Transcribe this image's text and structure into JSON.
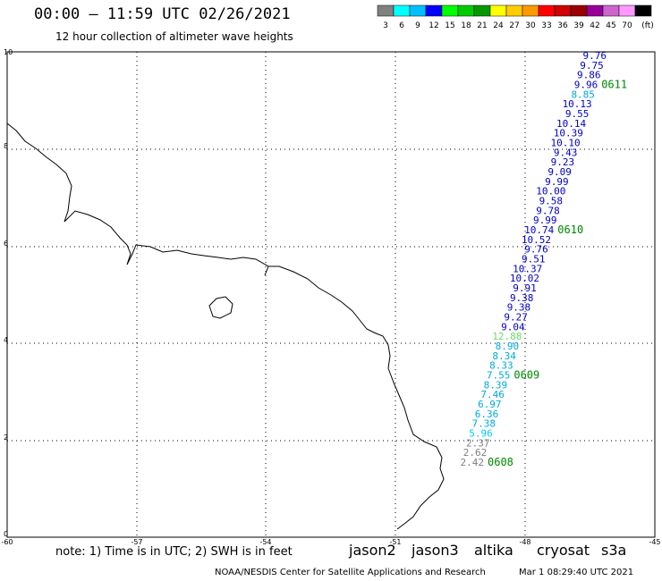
{
  "header": {
    "title": "00:00 – 11:59 UTC 02/26/2021",
    "subtitle": "12 hour collection of altimeter wave heights"
  },
  "legend": {
    "colors": [
      "#808080",
      "#00ffff",
      "#00bfff",
      "#0000ff",
      "#00ff00",
      "#00cc00",
      "#009900",
      "#ffff00",
      "#ffcc00",
      "#ff9900",
      "#ff0000",
      "#cc0000",
      "#990000",
      "#990099",
      "#cc66cc",
      "#ff99ff",
      "#000000"
    ],
    "labels": [
      "3",
      "6",
      "9",
      "12",
      "15",
      "18",
      "21",
      "24",
      "27",
      "30",
      "33",
      "36",
      "39",
      "42",
      "45",
      "70",
      "(ft)"
    ]
  },
  "axes": {
    "lat_labels": [
      "10",
      "8",
      "6",
      "4",
      "2",
      "0"
    ],
    "lon_labels": [
      "-60",
      "-57",
      "-54",
      "-51",
      "-48",
      "-45"
    ]
  },
  "track": {
    "readings": [
      {
        "v": "9.76",
        "c": "#0000cc"
      },
      {
        "v": "9.75",
        "c": "#0000cc"
      },
      {
        "v": "9.86",
        "c": "#0000cc"
      },
      {
        "v": "9.96",
        "c": "#0000cc"
      },
      {
        "v": "8.85",
        "c": "#00aadd"
      },
      {
        "v": "10.13",
        "c": "#0000cc"
      },
      {
        "v": "9.55",
        "c": "#0000cc"
      },
      {
        "v": "10.14",
        "c": "#0000cc"
      },
      {
        "v": "10.39",
        "c": "#0000cc"
      },
      {
        "v": "10.10",
        "c": "#0000cc"
      },
      {
        "v": "9.43",
        "c": "#0000cc"
      },
      {
        "v": "9.23",
        "c": "#0000cc"
      },
      {
        "v": "9.09",
        "c": "#0000cc"
      },
      {
        "v": "9.99",
        "c": "#0000cc"
      },
      {
        "v": "10.00",
        "c": "#0000cc"
      },
      {
        "v": "9.58",
        "c": "#0000cc"
      },
      {
        "v": "9.78",
        "c": "#0000cc"
      },
      {
        "v": "9.99",
        "c": "#0000cc"
      },
      {
        "v": "10.74",
        "c": "#0000cc"
      },
      {
        "v": "10.52",
        "c": "#0000cc"
      },
      {
        "v": "9.76",
        "c": "#0000cc"
      },
      {
        "v": "9.51",
        "c": "#0000cc"
      },
      {
        "v": "10.37",
        "c": "#0000cc"
      },
      {
        "v": "10.02",
        "c": "#0000cc"
      },
      {
        "v": "9.91",
        "c": "#0000cc"
      },
      {
        "v": "9.38",
        "c": "#0000cc"
      },
      {
        "v": "9.38",
        "c": "#0000cc"
      },
      {
        "v": "9.27",
        "c": "#0000cc"
      },
      {
        "v": "9.04",
        "c": "#0000cc"
      },
      {
        "v": "12.88",
        "c": "#66dd66"
      },
      {
        "v": "8.90",
        "c": "#00aadd"
      },
      {
        "v": "8.34",
        "c": "#00aadd"
      },
      {
        "v": "8.33",
        "c": "#00aadd"
      },
      {
        "v": "7.55",
        "c": "#00aadd"
      },
      {
        "v": "8.39",
        "c": "#00aadd"
      },
      {
        "v": "7.46",
        "c": "#00aadd"
      },
      {
        "v": "6.97",
        "c": "#00aadd"
      },
      {
        "v": "6.36",
        "c": "#00aadd"
      },
      {
        "v": "7.38",
        "c": "#00aadd"
      },
      {
        "v": "5.96",
        "c": "#00ccff"
      },
      {
        "v": "2.37",
        "c": "#808080"
      },
      {
        "v": "2.62",
        "c": "#808080"
      },
      {
        "v": "2.42",
        "c": "#808080"
      }
    ],
    "times": [
      "0611",
      "0610",
      "0609",
      "0608"
    ],
    "time_color": "#008800"
  },
  "footer": {
    "note": "note: 1) Time is in UTC; 2) SWH is in feet",
    "satellites": [
      {
        "name": "jason2",
        "color": "#0000ff"
      },
      {
        "name": "jason3",
        "color": "#00aa00"
      },
      {
        "name": "altika",
        "color": "#ff9900"
      },
      {
        "name": "cryosat",
        "color": "#ff0000"
      },
      {
        "name": "s3a",
        "color": "#990000"
      }
    ],
    "credit": "NOAA/NESDIS Center for Satellite Applications and Research",
    "date": "Mar  1 08:29:40 UTC 2021"
  }
}
